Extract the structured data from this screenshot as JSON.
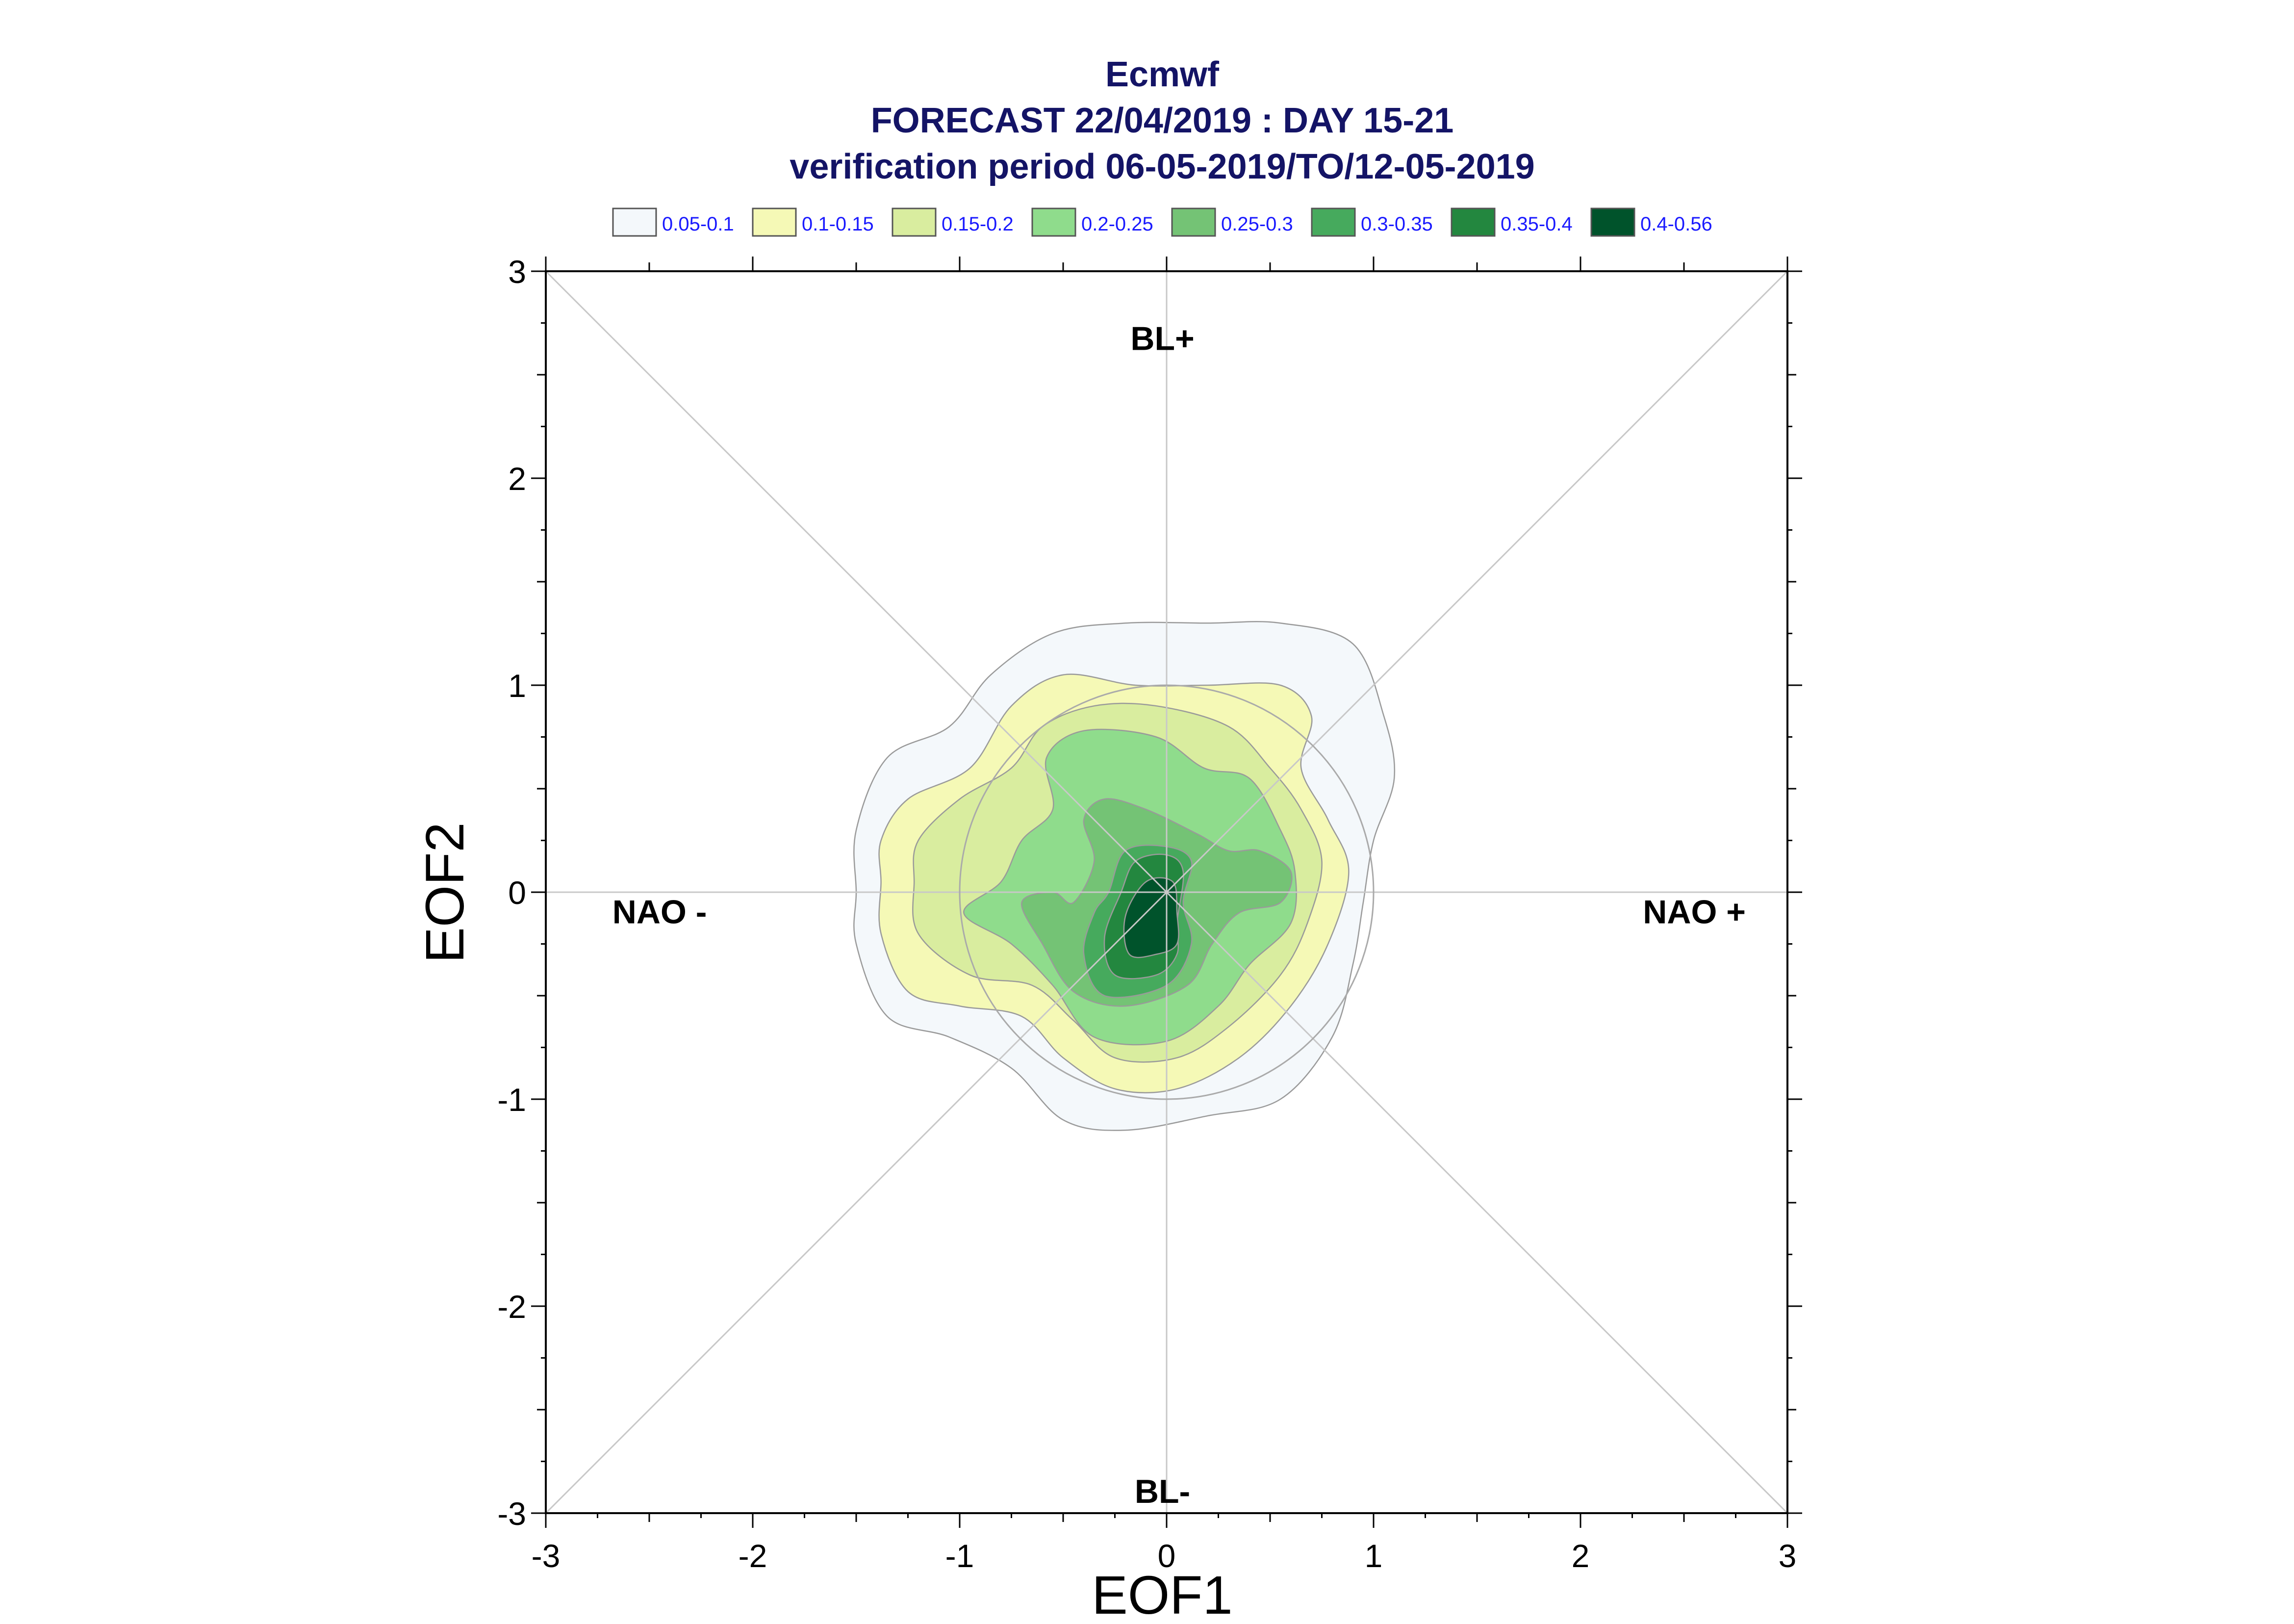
{
  "chart_data": {
    "type": "contour",
    "title": [
      "Ecmwf",
      "FORECAST 22/04/2019 : DAY 15-21",
      "verification period 06-05-2019/TO/12-05-2019"
    ],
    "xlabel": "EOF1",
    "ylabel": "EOF2",
    "xlim": [
      -3,
      3
    ],
    "ylim": [
      -3,
      3
    ],
    "xticks": [
      "-3",
      "-2",
      "-1",
      "0",
      "1",
      "2",
      "3"
    ],
    "yticks": [
      "3",
      "2",
      "1",
      "0",
      "-1",
      "-2",
      "-3"
    ],
    "grid": "diagonals and axes through origin",
    "legend_position": "top",
    "legend": [
      {
        "label": "0.05-0.1",
        "color": "#f4f8fb"
      },
      {
        "label": "0.1-0.15",
        "color": "#f5f9b6"
      },
      {
        "label": "0.15-0.2",
        "color": "#d9ed9f"
      },
      {
        "label": "0.2-0.25",
        "color": "#8fdc8c"
      },
      {
        "label": "0.25-0.3",
        "color": "#74c375"
      },
      {
        "label": "0.3-0.35",
        "color": "#46aa5d"
      },
      {
        "label": "0.35-0.4",
        "color": "#23873f"
      },
      {
        "label": "0.4-0.56",
        "color": "#00532b"
      }
    ],
    "region_labels": [
      "BL+",
      "BL-",
      "NAO -",
      "NAO +"
    ],
    "unit_circle_radius": 1,
    "contours": [
      {
        "level": "0.05-0.1",
        "points": [
          [
            -1.5,
            0.3
          ],
          [
            -1.35,
            0.65
          ],
          [
            -1.05,
            0.8
          ],
          [
            -0.85,
            1.05
          ],
          [
            -0.55,
            1.25
          ],
          [
            -0.2,
            1.3
          ],
          [
            0.2,
            1.3
          ],
          [
            0.55,
            1.3
          ],
          [
            0.9,
            1.2
          ],
          [
            1.05,
            0.85
          ],
          [
            1.1,
            0.55
          ],
          [
            1.0,
            0.25
          ],
          [
            0.95,
            -0.05
          ],
          [
            0.9,
            -0.35
          ],
          [
            0.8,
            -0.7
          ],
          [
            0.55,
            -1.0
          ],
          [
            0.2,
            -1.08
          ],
          [
            -0.2,
            -1.15
          ],
          [
            -0.5,
            -1.1
          ],
          [
            -0.75,
            -0.85
          ],
          [
            -1.05,
            -0.7
          ],
          [
            -1.35,
            -0.6
          ],
          [
            -1.5,
            -0.25
          ],
          [
            -1.5,
            0.0
          ]
        ]
      },
      {
        "level": "0.1-0.15",
        "points": [
          [
            -1.38,
            0.25
          ],
          [
            -1.25,
            0.45
          ],
          [
            -0.95,
            0.6
          ],
          [
            -0.75,
            0.9
          ],
          [
            -0.5,
            1.05
          ],
          [
            -0.15,
            1.0
          ],
          [
            0.2,
            1.0
          ],
          [
            0.55,
            1.0
          ],
          [
            0.7,
            0.85
          ],
          [
            0.65,
            0.6
          ],
          [
            0.78,
            0.35
          ],
          [
            0.88,
            0.1
          ],
          [
            0.78,
            -0.25
          ],
          [
            0.6,
            -0.55
          ],
          [
            0.35,
            -0.8
          ],
          [
            0.05,
            -0.95
          ],
          [
            -0.25,
            -0.95
          ],
          [
            -0.5,
            -0.8
          ],
          [
            -0.7,
            -0.6
          ],
          [
            -1.0,
            -0.55
          ],
          [
            -1.25,
            -0.48
          ],
          [
            -1.38,
            -0.2
          ],
          [
            -1.38,
            0.05
          ]
        ]
      },
      {
        "level": "0.15-0.2",
        "points": [
          [
            -1.2,
            0.25
          ],
          [
            -1.0,
            0.45
          ],
          [
            -0.75,
            0.6
          ],
          [
            -0.6,
            0.8
          ],
          [
            -0.35,
            0.9
          ],
          [
            -0.05,
            0.9
          ],
          [
            0.3,
            0.8
          ],
          [
            0.5,
            0.6
          ],
          [
            0.65,
            0.4
          ],
          [
            0.75,
            0.15
          ],
          [
            0.68,
            -0.15
          ],
          [
            0.55,
            -0.4
          ],
          [
            0.3,
            -0.65
          ],
          [
            0.05,
            -0.8
          ],
          [
            -0.25,
            -0.8
          ],
          [
            -0.45,
            -0.62
          ],
          [
            -0.65,
            -0.45
          ],
          [
            -0.95,
            -0.4
          ],
          [
            -1.2,
            -0.2
          ],
          [
            -1.22,
            0.05
          ]
        ]
      },
      {
        "level": "0.2-0.25",
        "points": [
          [
            -0.98,
            -0.1
          ],
          [
            -0.8,
            0.05
          ],
          [
            -0.7,
            0.25
          ],
          [
            -0.55,
            0.4
          ],
          [
            -0.58,
            0.65
          ],
          [
            -0.4,
            0.78
          ],
          [
            -0.05,
            0.75
          ],
          [
            0.18,
            0.6
          ],
          [
            0.4,
            0.55
          ],
          [
            0.55,
            0.3
          ],
          [
            0.62,
            0.1
          ],
          [
            0.6,
            -0.15
          ],
          [
            0.4,
            -0.35
          ],
          [
            0.25,
            -0.55
          ],
          [
            0.0,
            -0.72
          ],
          [
            -0.35,
            -0.7
          ],
          [
            -0.55,
            -0.45
          ],
          [
            -0.75,
            -0.25
          ]
        ]
      },
      {
        "level": "0.25-0.3",
        "points": [
          [
            -0.7,
            -0.05
          ],
          [
            -0.55,
            0.0
          ],
          [
            -0.45,
            -0.05
          ],
          [
            -0.35,
            0.15
          ],
          [
            -0.4,
            0.35
          ],
          [
            -0.3,
            0.45
          ],
          [
            -0.1,
            0.4
          ],
          [
            0.15,
            0.28
          ],
          [
            0.3,
            0.2
          ],
          [
            0.45,
            0.2
          ],
          [
            0.6,
            0.1
          ],
          [
            0.55,
            -0.05
          ],
          [
            0.35,
            -0.1
          ],
          [
            0.22,
            -0.25
          ],
          [
            0.1,
            -0.45
          ],
          [
            -0.2,
            -0.55
          ],
          [
            -0.45,
            -0.48
          ],
          [
            -0.6,
            -0.25
          ]
        ]
      },
      {
        "level": "0.3-0.35",
        "points": [
          [
            -0.28,
            0.0
          ],
          [
            -0.2,
            0.2
          ],
          [
            0.0,
            0.22
          ],
          [
            0.12,
            0.15
          ],
          [
            0.08,
            -0.05
          ],
          [
            0.12,
            -0.25
          ],
          [
            0.0,
            -0.45
          ],
          [
            -0.3,
            -0.5
          ],
          [
            -0.4,
            -0.3
          ],
          [
            -0.35,
            -0.1
          ]
        ]
      },
      {
        "level": "0.35-0.4",
        "points": [
          [
            -0.22,
            0.0
          ],
          [
            -0.15,
            0.15
          ],
          [
            0.0,
            0.18
          ],
          [
            0.08,
            0.1
          ],
          [
            0.05,
            -0.15
          ],
          [
            0.05,
            -0.3
          ],
          [
            -0.05,
            -0.4
          ],
          [
            -0.25,
            -0.4
          ],
          [
            -0.3,
            -0.22
          ]
        ]
      },
      {
        "level": "0.4-0.56",
        "points": [
          [
            -0.1,
            0.05
          ],
          [
            0.03,
            0.05
          ],
          [
            0.05,
            -0.1
          ],
          [
            0.05,
            -0.25
          ],
          [
            -0.05,
            -0.3
          ],
          [
            -0.18,
            -0.3
          ],
          [
            -0.2,
            -0.12
          ]
        ]
      }
    ]
  }
}
